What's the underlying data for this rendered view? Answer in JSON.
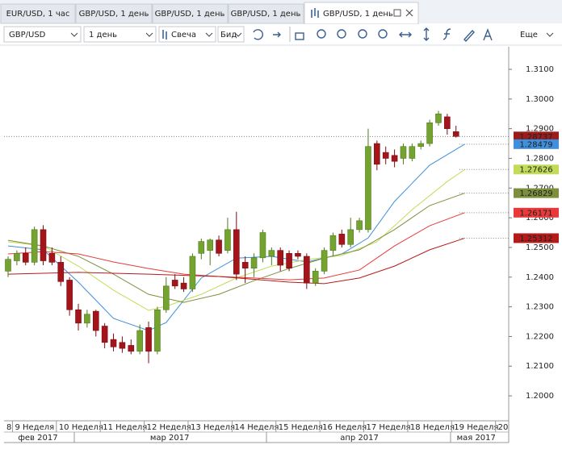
{
  "tabs": [
    "EUR/USD, 1 час",
    "GBP/USD, 1 день",
    "GBP/USD, 1 день",
    "GBP/USD, 1 день",
    "GBP/USD, 1 день"
  ],
  "toolbar": {
    "symbol": "GBP/USD",
    "period": "1 день",
    "chart_type": "Свеча",
    "price_type": "Бид",
    "more": "Еще"
  },
  "chart_data": {
    "type": "candlestick",
    "xlim": [
      -0.46,
      57
    ],
    "ylim": [
      1.1916,
      1.3176
    ],
    "yticks": [
      {
        "value": 1.2,
        "label": "1.2000"
      },
      {
        "value": 1.21,
        "label": "1.2100"
      },
      {
        "value": 1.22,
        "label": "1.2200"
      },
      {
        "value": 1.23,
        "label": "1.2300"
      },
      {
        "value": 1.24,
        "label": "1.2400"
      },
      {
        "value": 1.25,
        "label": "1.2500"
      },
      {
        "value": 1.26,
        "label": "1.2600"
      },
      {
        "value": 1.27,
        "label": "1.2700"
      },
      {
        "value": 1.28,
        "label": "1.2800"
      },
      {
        "value": 1.29,
        "label": "1.2900"
      },
      {
        "value": 1.3,
        "label": "1.3000"
      },
      {
        "value": 1.31,
        "label": "1.3100"
      }
    ],
    "xticks": [
      {
        "value": -0.5,
        "label": "8"
      },
      {
        "value": 0.5,
        "label": "9 Неделя"
      },
      {
        "value": 5.5,
        "label": "10 Неделя"
      },
      {
        "value": 10.5,
        "label": "11 Неделя"
      },
      {
        "value": 15.5,
        "label": "12 Неделя"
      },
      {
        "value": 20.5,
        "label": "13 Неделя"
      },
      {
        "value": 25.5,
        "label": "14 Неделя"
      },
      {
        "value": 30.5,
        "label": "15 Неделя"
      },
      {
        "value": 35.5,
        "label": "16 Неделя"
      },
      {
        "value": 40.5,
        "label": "17 Неделя"
      },
      {
        "value": 45.5,
        "label": "18 Неделя"
      },
      {
        "value": 50.5,
        "label": "19 Неделя"
      },
      {
        "value": 55.5,
        "label": "20"
      }
    ],
    "months": [
      {
        "value": 3.4,
        "label": "фев 2017"
      },
      {
        "value": 18.4,
        "label": "мар 2017"
      },
      {
        "value": 40,
        "label": "апр 2017"
      },
      {
        "value": 53.3,
        "label": "мая 2017"
      }
    ],
    "candles": {
      "up_color": "#74a330",
      "down_color": "#a3151a",
      "open": [
        1.242,
        1.2455,
        1.248,
        1.245,
        1.256,
        1.248,
        1.245,
        1.239,
        1.229,
        1.2245,
        1.2285,
        1.2235,
        1.219,
        1.218,
        1.217,
        1.215,
        1.223,
        1.215,
        1.229,
        1.239,
        1.238,
        1.236,
        1.248,
        1.249,
        1.2525,
        1.249,
        1.256,
        1.245,
        1.243,
        1.2465,
        1.247,
        1.249,
        1.248,
        1.248,
        1.247,
        1.238,
        1.242,
        1.249,
        1.2545,
        1.251,
        1.256,
        1.256,
        1.285,
        1.282,
        1.281,
        1.28,
        1.28,
        1.284,
        1.285,
        1.292,
        1.294,
        1.289
      ],
      "high": [
        1.247,
        1.249,
        1.25,
        1.257,
        1.2575,
        1.25,
        1.247,
        1.24,
        1.231,
        1.229,
        1.229,
        1.2245,
        1.221,
        1.22,
        1.219,
        1.224,
        1.225,
        1.23,
        1.24,
        1.241,
        1.24,
        1.248,
        1.253,
        1.253,
        1.254,
        1.26,
        1.262,
        1.247,
        1.248,
        1.256,
        1.25,
        1.25,
        1.249,
        1.249,
        1.248,
        1.243,
        1.25,
        1.255,
        1.256,
        1.26,
        1.26,
        1.29,
        1.286,
        1.284,
        1.283,
        1.285,
        1.285,
        1.286,
        1.293,
        1.296,
        1.295,
        1.291
      ],
      "low": [
        1.24,
        1.244,
        1.244,
        1.244,
        1.244,
        1.244,
        1.237,
        1.227,
        1.222,
        1.223,
        1.22,
        1.216,
        1.215,
        1.2145,
        1.214,
        1.214,
        1.211,
        1.214,
        1.228,
        1.236,
        1.235,
        1.235,
        1.246,
        1.244,
        1.247,
        1.248,
        1.239,
        1.238,
        1.24,
        1.245,
        1.244,
        1.242,
        1.242,
        1.246,
        1.236,
        1.237,
        1.241,
        1.247,
        1.25,
        1.25,
        1.255,
        1.255,
        1.276,
        1.278,
        1.277,
        1.278,
        1.279,
        1.283,
        1.284,
        1.291,
        1.288,
        1.287
      ],
      "close": [
        1.246,
        1.248,
        1.245,
        1.256,
        1.2455,
        1.245,
        1.2385,
        1.229,
        1.2245,
        1.2275,
        1.222,
        1.218,
        1.2165,
        1.216,
        1.215,
        1.222,
        1.215,
        1.229,
        1.237,
        1.237,
        1.236,
        1.247,
        1.252,
        1.2525,
        1.248,
        1.256,
        1.241,
        1.243,
        1.2465,
        1.255,
        1.249,
        1.244,
        1.243,
        1.247,
        1.238,
        1.242,
        1.249,
        1.254,
        1.251,
        1.256,
        1.259,
        1.284,
        1.278,
        1.28,
        1.279,
        1.284,
        1.284,
        1.285,
        1.292,
        1.295,
        1.29,
        1.28737
      ]
    },
    "series": [
      {
        "color": "#3f8fdc",
        "x": [
          0,
          4,
          8,
          12,
          16,
          18,
          22,
          26,
          30,
          34,
          38,
          41,
          44,
          48,
          52
        ],
        "values": [
          1.2505,
          1.2492,
          1.2383,
          1.2261,
          1.222,
          1.2247,
          1.2397,
          1.2464,
          1.247,
          1.2451,
          1.2478,
          1.2532,
          1.2655,
          1.2777,
          1.28479
        ],
        "last_value": 1.28479
      },
      {
        "color": "#c2dc5a",
        "x": [
          0,
          4,
          8,
          12,
          16,
          18,
          22,
          26,
          30,
          34,
          38,
          42,
          46,
          50,
          52
        ],
        "values": [
          1.2519,
          1.2505,
          1.2437,
          1.2356,
          1.2288,
          1.2302,
          1.2342,
          1.2397,
          1.2437,
          1.2459,
          1.2473,
          1.2519,
          1.2627,
          1.2722,
          1.27626
        ],
        "last_value": 1.27626
      },
      {
        "color": "#7d8f3c",
        "x": [
          0,
          4,
          8,
          12,
          16,
          20,
          24,
          28,
          32,
          36,
          40,
          44,
          48,
          52
        ],
        "values": [
          1.2524,
          1.2505,
          1.247,
          1.241,
          1.2342,
          1.2315,
          1.2342,
          1.2388,
          1.2429,
          1.2464,
          1.2492,
          1.256,
          1.2641,
          1.26829
        ],
        "last_value": 1.26829
      },
      {
        "color": "#e83a3a",
        "x": [
          0,
          4,
          8,
          12,
          16,
          20,
          24,
          28,
          32,
          36,
          40,
          44,
          48,
          52
        ],
        "values": [
          1.2478,
          1.2486,
          1.2478,
          1.2451,
          1.2429,
          1.241,
          1.2402,
          1.2397,
          1.2391,
          1.2397,
          1.2424,
          1.2505,
          1.2573,
          1.26171
        ],
        "last_value": 1.26171
      },
      {
        "color": "#b41c1c",
        "x": [
          0,
          8,
          16,
          24,
          32,
          36,
          40,
          44,
          48,
          52
        ],
        "values": [
          1.241,
          1.2416,
          1.241,
          1.2402,
          1.2383,
          1.2378,
          1.2397,
          1.2437,
          1.2492,
          1.25312
        ],
        "last_value": 1.25312
      }
    ],
    "price": 1.28737,
    "price_color": "#9c1b1b"
  }
}
